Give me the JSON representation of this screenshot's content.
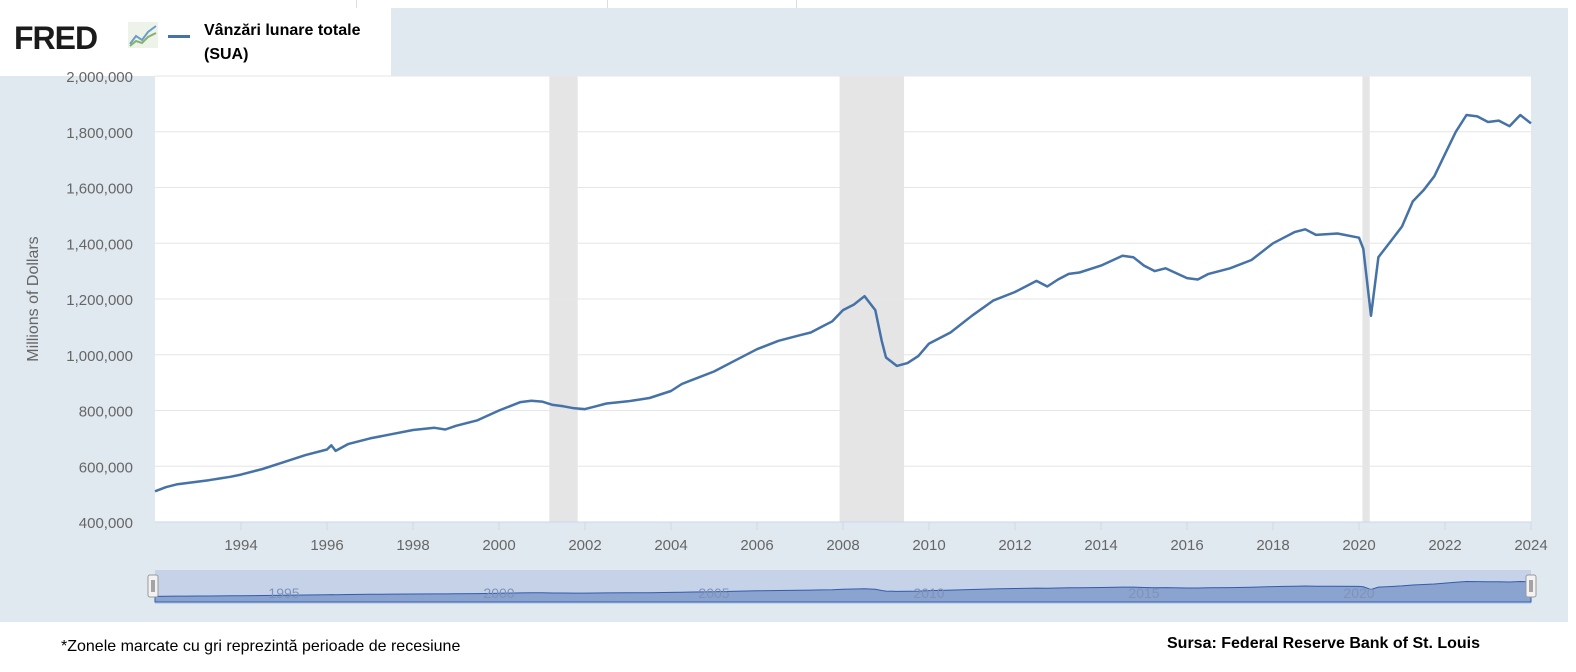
{
  "legend": {
    "logo_text": "FRED",
    "logo_icon": "fred-graph-icon",
    "series_label": "Vânzări lunare totale (SUA)"
  },
  "footer": {
    "note": "*Zonele marcate cu gri reprezintă perioade de recesiune",
    "source": "Sursa: Federal Reserve Bank of St. Louis"
  },
  "colors": {
    "line": "#4572a7",
    "recession": "#e5e5e5",
    "frame": "#e1e9f0",
    "navigator_fill": "#8aa4cf"
  },
  "chart_data": {
    "type": "line",
    "title": "",
    "xlabel": "",
    "ylabel": "Millions of Dollars",
    "ylim": [
      400000,
      2000000
    ],
    "xlim": [
      1992.0,
      2024.0
    ],
    "y_ticks": [
      400000,
      600000,
      800000,
      1000000,
      1200000,
      1400000,
      1600000,
      1800000,
      2000000
    ],
    "y_tick_labels": [
      "400,000",
      "600,000",
      "800,000",
      "1,000,000",
      "1,200,000",
      "1,400,000",
      "1,600,000",
      "1,800,000",
      "2,000,000"
    ],
    "x_ticks": [
      1994,
      1996,
      1998,
      2000,
      2002,
      2004,
      2006,
      2008,
      2010,
      2012,
      2014,
      2016,
      2018,
      2020,
      2022,
      2024
    ],
    "x_tick_labels": [
      "1994",
      "1996",
      "1998",
      "2000",
      "2002",
      "2004",
      "2006",
      "2008",
      "2010",
      "2012",
      "2014",
      "2016",
      "2018",
      "2020",
      "2022",
      "2024"
    ],
    "grid": true,
    "legend_position": "top-left",
    "recessions": [
      {
        "start": 2001.17,
        "end": 2001.83
      },
      {
        "start": 2007.92,
        "end": 2009.42
      },
      {
        "start": 2020.08,
        "end": 2020.25
      }
    ],
    "navigator": {
      "tick_labels": [
        "1995",
        "2000",
        "2005",
        "2010",
        "2015",
        "2020"
      ],
      "tick_years": [
        1995,
        2000,
        2005,
        2010,
        2015,
        2020
      ]
    },
    "series": [
      {
        "name": "Vânzări lunare totale (SUA)",
        "points": [
          [
            1992.0,
            510000
          ],
          [
            1992.25,
            525000
          ],
          [
            1992.5,
            535000
          ],
          [
            1992.75,
            540000
          ],
          [
            1993.0,
            545000
          ],
          [
            1993.25,
            550000
          ],
          [
            1993.5,
            556000
          ],
          [
            1993.75,
            562000
          ],
          [
            1994.0,
            570000
          ],
          [
            1994.5,
            590000
          ],
          [
            1995.0,
            615000
          ],
          [
            1995.5,
            640000
          ],
          [
            1996.0,
            660000
          ],
          [
            1996.1,
            675000
          ],
          [
            1996.2,
            655000
          ],
          [
            1996.5,
            680000
          ],
          [
            1997.0,
            700000
          ],
          [
            1997.5,
            715000
          ],
          [
            1998.0,
            730000
          ],
          [
            1998.5,
            738000
          ],
          [
            1998.75,
            732000
          ],
          [
            1999.0,
            745000
          ],
          [
            1999.5,
            765000
          ],
          [
            2000.0,
            800000
          ],
          [
            2000.5,
            830000
          ],
          [
            2000.75,
            835000
          ],
          [
            2001.0,
            832000
          ],
          [
            2001.25,
            820000
          ],
          [
            2001.5,
            815000
          ],
          [
            2001.75,
            808000
          ],
          [
            2002.0,
            805000
          ],
          [
            2002.25,
            815000
          ],
          [
            2002.5,
            825000
          ],
          [
            2003.0,
            833000
          ],
          [
            2003.5,
            845000
          ],
          [
            2004.0,
            870000
          ],
          [
            2004.25,
            895000
          ],
          [
            2004.5,
            910000
          ],
          [
            2005.0,
            940000
          ],
          [
            2005.5,
            980000
          ],
          [
            2006.0,
            1020000
          ],
          [
            2006.5,
            1050000
          ],
          [
            2007.0,
            1070000
          ],
          [
            2007.25,
            1080000
          ],
          [
            2007.5,
            1100000
          ],
          [
            2007.75,
            1120000
          ],
          [
            2008.0,
            1160000
          ],
          [
            2008.25,
            1180000
          ],
          [
            2008.5,
            1210000
          ],
          [
            2008.75,
            1160000
          ],
          [
            2008.9,
            1050000
          ],
          [
            2009.0,
            990000
          ],
          [
            2009.25,
            960000
          ],
          [
            2009.5,
            970000
          ],
          [
            2009.75,
            995000
          ],
          [
            2010.0,
            1040000
          ],
          [
            2010.5,
            1080000
          ],
          [
            2011.0,
            1140000
          ],
          [
            2011.5,
            1195000
          ],
          [
            2012.0,
            1225000
          ],
          [
            2012.5,
            1265000
          ],
          [
            2012.75,
            1245000
          ],
          [
            2013.0,
            1270000
          ],
          [
            2013.25,
            1290000
          ],
          [
            2013.5,
            1295000
          ],
          [
            2014.0,
            1320000
          ],
          [
            2014.5,
            1355000
          ],
          [
            2014.75,
            1350000
          ],
          [
            2015.0,
            1320000
          ],
          [
            2015.25,
            1300000
          ],
          [
            2015.5,
            1310000
          ],
          [
            2016.0,
            1275000
          ],
          [
            2016.25,
            1270000
          ],
          [
            2016.5,
            1290000
          ],
          [
            2017.0,
            1310000
          ],
          [
            2017.5,
            1340000
          ],
          [
            2018.0,
            1400000
          ],
          [
            2018.25,
            1420000
          ],
          [
            2018.5,
            1440000
          ],
          [
            2018.75,
            1450000
          ],
          [
            2019.0,
            1430000
          ],
          [
            2019.5,
            1435000
          ],
          [
            2020.0,
            1420000
          ],
          [
            2020.1,
            1380000
          ],
          [
            2020.28,
            1140000
          ],
          [
            2020.45,
            1350000
          ],
          [
            2020.75,
            1410000
          ],
          [
            2021.0,
            1460000
          ],
          [
            2021.25,
            1550000
          ],
          [
            2021.5,
            1590000
          ],
          [
            2021.75,
            1640000
          ],
          [
            2022.0,
            1720000
          ],
          [
            2022.25,
            1800000
          ],
          [
            2022.5,
            1860000
          ],
          [
            2022.75,
            1855000
          ],
          [
            2023.0,
            1835000
          ],
          [
            2023.25,
            1840000
          ],
          [
            2023.5,
            1820000
          ],
          [
            2023.75,
            1860000
          ],
          [
            2024.0,
            1830000
          ]
        ]
      }
    ]
  }
}
